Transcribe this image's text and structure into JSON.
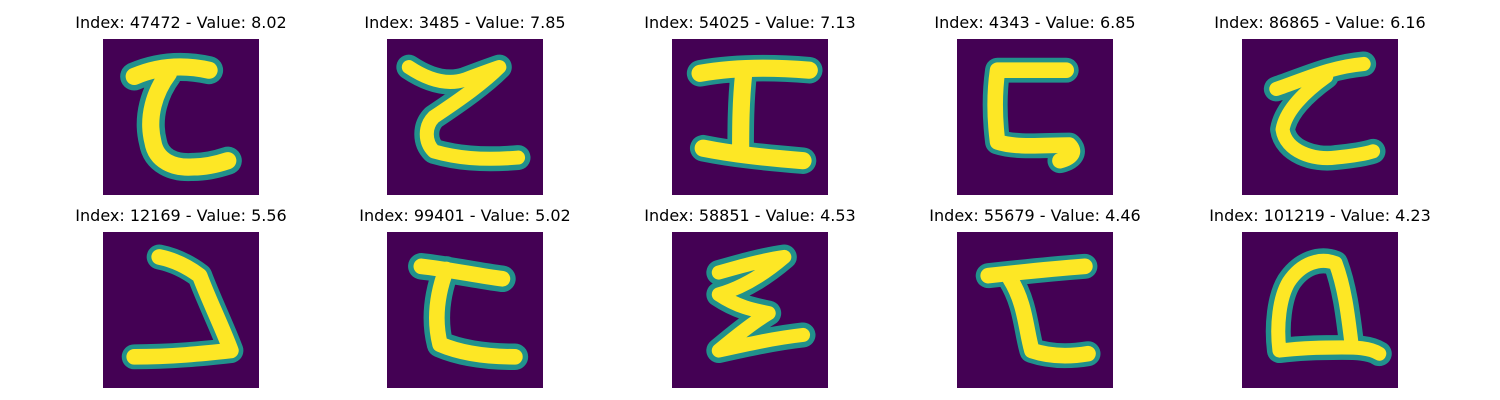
{
  "colors": {
    "background": "#440154",
    "foreground": "#fde725",
    "edge": "#21918c"
  },
  "samples": [
    {
      "title": "Index: 47472 - Value: 8.02",
      "glyph": "reverse-c-hook"
    },
    {
      "title": "Index: 3485 - Value: 7.85",
      "glyph": "zigzag-z"
    },
    {
      "title": "Index: 54025 - Value: 7.13",
      "glyph": "capital-i"
    },
    {
      "title": "Index: 4343 - Value: 6.85",
      "glyph": "bracket-c"
    },
    {
      "title": "Index: 86865 - Value: 6.16",
      "glyph": "curly-c"
    },
    {
      "title": "Index: 12169 - Value: 5.56",
      "glyph": "reverse-s"
    },
    {
      "title": "Index: 99401 - Value: 5.02",
      "glyph": "bracket-c-loop"
    },
    {
      "title": "Index: 58851 - Value: 4.53",
      "glyph": "sigma"
    },
    {
      "title": "Index: 55679 - Value: 4.46",
      "glyph": "hook-c"
    },
    {
      "title": "Index: 101219 - Value: 4.23",
      "glyph": "loop-q"
    }
  ]
}
